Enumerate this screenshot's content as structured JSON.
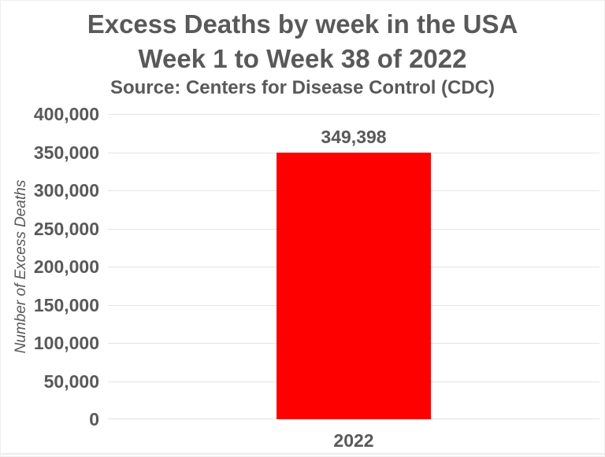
{
  "chart_data": {
    "type": "bar",
    "title_line1": "Excess Deaths by week in the USA",
    "title_line2": "Week 1 to Week 38 of 2022",
    "subtitle": "Source: Centers for Disease Control (CDC)",
    "ylabel": "Number of Excess Deaths",
    "xlabel": "",
    "categories": [
      "2022"
    ],
    "values": [
      349398
    ],
    "data_labels": [
      "349,398"
    ],
    "ylim": [
      0,
      400000
    ],
    "ytick_step": 50000,
    "ytick_labels": [
      "0",
      "50,000",
      "100,000",
      "150,000",
      "200,000",
      "250,000",
      "300,000",
      "350,000",
      "400,000"
    ],
    "grid": true,
    "legend_position": "none",
    "colors": {
      "bar": "#ff0000",
      "text": "#595959",
      "gridline": "#e4e4e4",
      "background": "#ffffff",
      "border": "#ececec"
    }
  }
}
